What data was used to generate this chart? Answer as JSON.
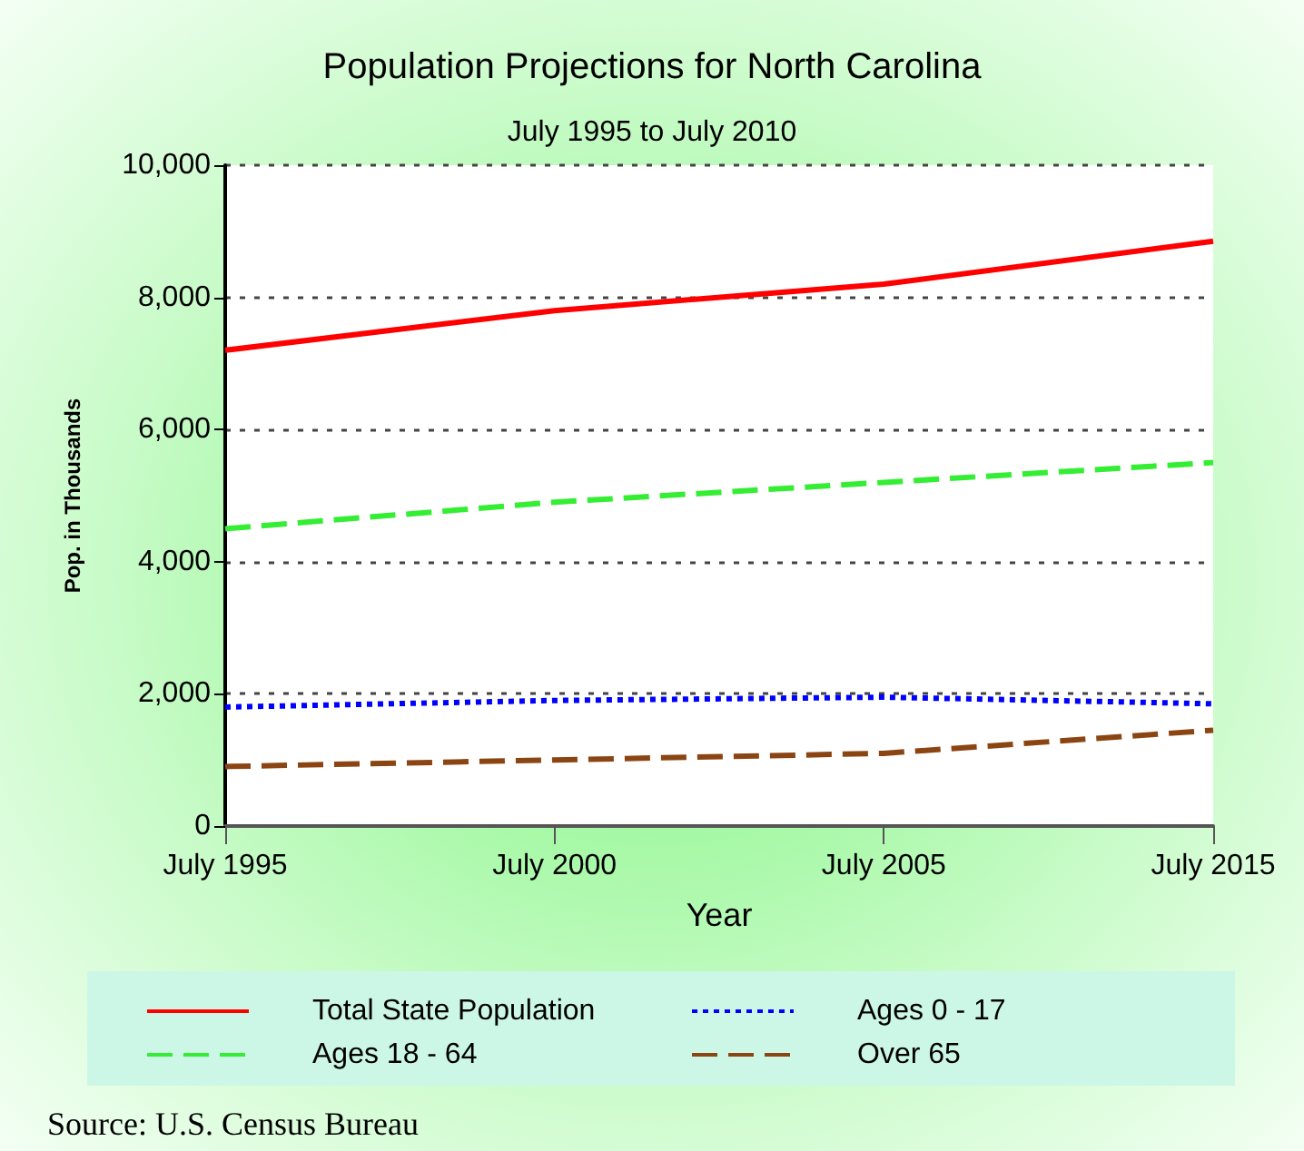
{
  "chart_data": {
    "type": "line",
    "title": "Population Projections for North Carolina",
    "subtitle": "July 1995 to July 2010",
    "xlabel": "Year",
    "ylabel": "Pop. in Thousands",
    "categories": [
      "July 1995",
      "July 2000",
      "July 2005",
      "July 2015"
    ],
    "series": [
      {
        "name": "Total State Population",
        "color": "#ff0000",
        "line_style": "solid",
        "values": [
          7200,
          7800,
          8200,
          8850
        ]
      },
      {
        "name": "Ages 0 - 17",
        "color": "#0000ff",
        "line_style": "dotted",
        "values": [
          1800,
          1900,
          1950,
          1850
        ]
      },
      {
        "name": "Ages 18 - 64",
        "color": "#33ee33",
        "line_style": "dashed",
        "values": [
          4500,
          4900,
          5200,
          5500
        ]
      },
      {
        "name": "Over 65",
        "color": "#8b4513",
        "line_style": "dashed",
        "values": [
          900,
          1000,
          1100,
          1450
        ]
      }
    ],
    "ylim": [
      0,
      10000
    ],
    "yticks": [
      0,
      {
        "value": 2000,
        "label": "2,000"
      },
      {
        "value": 4000,
        "label": "4,000"
      },
      {
        "value": 6000,
        "label": "6,000"
      },
      {
        "value": 8000,
        "label": "8,000"
      },
      {
        "value": 10000,
        "label": "10,000"
      }
    ],
    "grid": "y",
    "legend": "bottom",
    "marker": "none",
    "annotations": [
      "Source: U.S. Census Bureau"
    ]
  }
}
